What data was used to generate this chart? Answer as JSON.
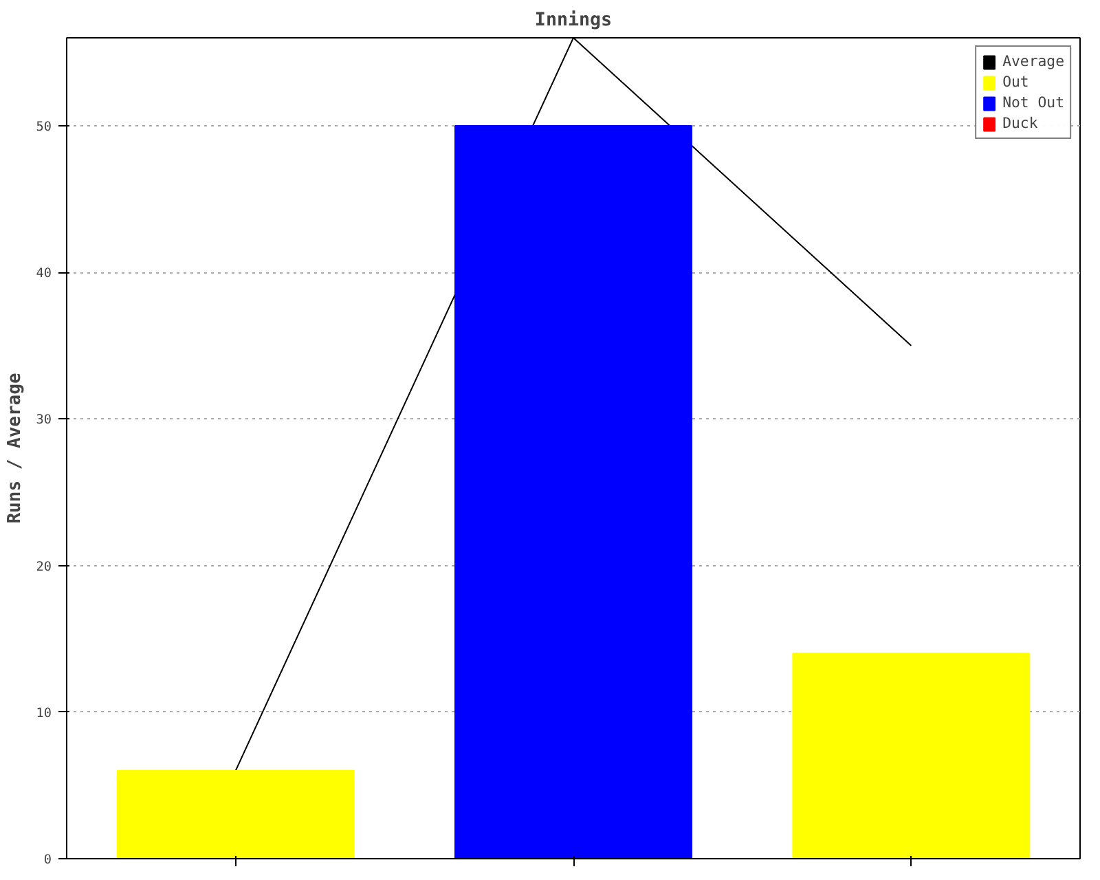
{
  "chart_data": {
    "type": "bar",
    "title": "Innings",
    "ylabel": "Runs / Average",
    "categories": [
      null,
      null,
      null
    ],
    "series": [
      {
        "name": "Average",
        "type": "line",
        "color": "#000000",
        "values": [
          6,
          56,
          35
        ]
      },
      {
        "name": "Out",
        "color": "#ffff00",
        "values": [
          6,
          null,
          14
        ]
      },
      {
        "name": "Not Out",
        "color": "#0000ff",
        "values": [
          null,
          50,
          null
        ]
      },
      {
        "name": "Duck",
        "color": "#ff0000",
        "values": [
          null,
          null,
          null
        ]
      }
    ],
    "ylim": [
      0,
      56
    ],
    "yticks": [
      0,
      10,
      20,
      30,
      40,
      50
    ],
    "grid": "y",
    "legend": "top right",
    "tick_labels": "y"
  }
}
